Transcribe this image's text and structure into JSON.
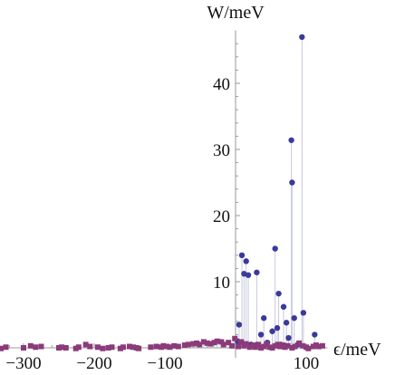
{
  "chart_data": {
    "type": "scatter",
    "xlabel": "ϵ/meV",
    "ylabel": "W/meV",
    "xlim": [
      -345,
      130
    ],
    "ylim": [
      -1.5,
      48
    ],
    "x_ticks": [
      -300,
      -200,
      -100,
      100
    ],
    "x_tick_labels": [
      "−300",
      "−200",
      "−100",
      "100"
    ],
    "y_ticks": [
      10,
      20,
      30,
      40
    ],
    "y_tick_labels": [
      "10",
      "20",
      "30",
      "40"
    ],
    "grid": false,
    "stems": true,
    "series": [
      {
        "marker": "circle",
        "color": "#3a3a9a",
        "points": [
          [
            3,
            1.0
          ],
          [
            5,
            3.5
          ],
          [
            9,
            14.0
          ],
          [
            12,
            11.2
          ],
          [
            15,
            13.1
          ],
          [
            18,
            11.0
          ],
          [
            22,
            0.5
          ],
          [
            30,
            11.4
          ],
          [
            36,
            2.0
          ],
          [
            40,
            4.5
          ],
          [
            45,
            0.8
          ],
          [
            52,
            2.5
          ],
          [
            56,
            15.0
          ],
          [
            59,
            3.0
          ],
          [
            61,
            8.2
          ],
          [
            64,
            0.5
          ],
          [
            68,
            6.2
          ],
          [
            72,
            3.8
          ],
          [
            75,
            1.5
          ],
          [
            79,
            31.4
          ],
          [
            80,
            25.0
          ],
          [
            83,
            4.5
          ],
          [
            88,
            0.5
          ],
          [
            94,
            47.0
          ],
          [
            96,
            5.3
          ],
          [
            112,
            2.0
          ]
        ]
      },
      {
        "marker": "square",
        "color": "#8b3a7a",
        "points": [
          [
            -340,
            0.2
          ],
          [
            -332,
            -0.1
          ],
          [
            -325,
            0.1
          ],
          [
            -300,
            0.0
          ],
          [
            -290,
            0.3
          ],
          [
            -283,
            0.1
          ],
          [
            -275,
            0.2
          ],
          [
            -250,
            0.0
          ],
          [
            -246,
            0.1
          ],
          [
            -240,
            0.0
          ],
          [
            -226,
            -0.1
          ],
          [
            -222,
            0.1
          ],
          [
            -212,
            0.5
          ],
          [
            -206,
            0.2
          ],
          [
            -195,
            0.1
          ],
          [
            -188,
            -0.1
          ],
          [
            -180,
            0.0
          ],
          [
            -175,
            0.1
          ],
          [
            -163,
            -0.1
          ],
          [
            -159,
            0.1
          ],
          [
            -150,
            0.2
          ],
          [
            -145,
            0.1
          ],
          [
            -140,
            0.0
          ],
          [
            -137,
            -0.1
          ],
          [
            -120,
            0.1
          ],
          [
            -112,
            0.2
          ],
          [
            -105,
            0.1
          ],
          [
            -102,
            0.3
          ],
          [
            -97,
            0.2
          ],
          [
            -93,
            0.1
          ],
          [
            -87,
            0.3
          ],
          [
            -81,
            0.2
          ],
          [
            -72,
            0.4
          ],
          [
            -67,
            0.5
          ],
          [
            -60,
            0.6
          ],
          [
            -55,
            0.7
          ],
          [
            -51,
            0.5
          ],
          [
            -45,
            0.9
          ],
          [
            -40,
            0.7
          ],
          [
            -35,
            0.6
          ],
          [
            -30,
            0.8
          ],
          [
            -26,
            1.0
          ],
          [
            -20,
            0.9
          ],
          [
            -17,
            0.5
          ],
          [
            -10,
            0.8
          ],
          [
            -5,
            0.3
          ],
          [
            -1,
            1.4
          ],
          [
            4,
            0.2
          ],
          [
            8,
            0.9
          ],
          [
            12,
            0.3
          ],
          [
            15,
            0.6
          ],
          [
            20,
            0.1
          ],
          [
            25,
            0.4
          ],
          [
            28,
            0.1
          ],
          [
            32,
            0.5
          ],
          [
            36,
            0.0
          ],
          [
            40,
            0.2
          ],
          [
            44,
            0.6
          ],
          [
            48,
            0.1
          ],
          [
            52,
            0.0
          ],
          [
            56,
            0.3
          ],
          [
            60,
            0.5
          ],
          [
            63,
            0.2
          ],
          [
            67,
            0.4
          ],
          [
            70,
            0.1
          ],
          [
            74,
            0.3
          ],
          [
            80,
            0.0
          ],
          [
            84,
            0.2
          ],
          [
            90,
            0.7
          ],
          [
            95,
            0.3
          ],
          [
            100,
            0.1
          ],
          [
            103,
            -0.1
          ],
          [
            110,
            0.2
          ],
          [
            114,
            0.4
          ],
          [
            118,
            0.2
          ],
          [
            123,
            0.3
          ]
        ]
      }
    ]
  }
}
